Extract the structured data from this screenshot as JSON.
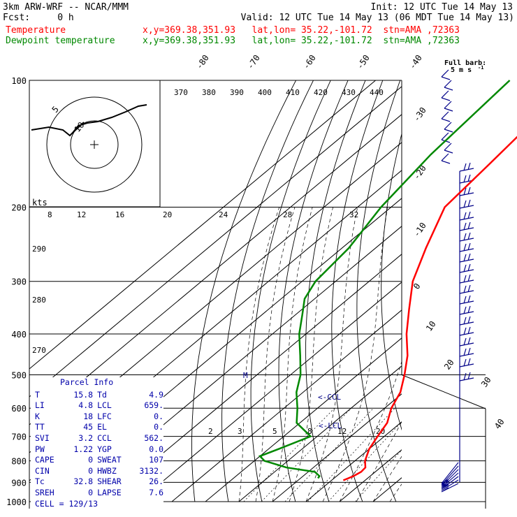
{
  "header": {
    "model": "3km ARW-WRF -- NCAR/MMM",
    "init": "Init: 12 UTC Tue 14 May 13",
    "fcst": "Fcst:     0 h",
    "valid": "Valid: 12 UTC Tue 14 May 13 (06 MDT Tue 14 May 13)",
    "temp_label": "Temperature",
    "dew_label": "Dewpoint temperature",
    "temp_coord": "x,y=369.38,351.93   lat,lon= 35.22,-101.72  stn=AMA ,72363",
    "dew_coord": "x,y=369.38,351.93   lat,lon= 35.22,-101.72  stn=AMA ,72363"
  },
  "colors": {
    "temperature": "#ff0000",
    "dewpoint": "#008800",
    "parcel_text": "#0000aa",
    "wind": "#000088"
  },
  "wind_legend": {
    "title": "Full barb:",
    "value": "5 m s",
    "exp": "-1"
  },
  "hodograph": {
    "rings": [
      "5",
      "10"
    ],
    "unit": "kts"
  },
  "chart_data": {
    "type": "line",
    "title": "",
    "ylabel": "",
    "xlabel": "",
    "y_scale": "log",
    "pressure_levels": [
      "100",
      "200",
      "300",
      "400",
      "500",
      "600",
      "700",
      "800",
      "900",
      "1000"
    ],
    "isotherm_labels": [
      "-80",
      "-70",
      "-60",
      "-50",
      "-40",
      "-30",
      "-20",
      "-10",
      "0",
      "10",
      "20",
      "30",
      "40"
    ],
    "theta_e_labels": [
      "370",
      "380",
      "390",
      "400",
      "410",
      "420",
      "430",
      "440"
    ],
    "hodo_speed_labels": [
      "8",
      "12",
      "16",
      "20",
      "24",
      "28",
      "32"
    ],
    "theta_labels": [
      "290",
      "280",
      "270"
    ],
    "mixing_ratio_labels": [
      "2",
      "3",
      "5",
      "8",
      "12",
      "20"
    ],
    "markers": {
      "ccl": "<-CCL",
      "lcl": "<-LCL",
      "m": "M"
    },
    "series": [
      {
        "name": "Temperature",
        "p": [
          100,
          130,
          160,
          200,
          250,
          300,
          350,
          400,
          450,
          500,
          550,
          600,
          650,
          700,
          750,
          800,
          830,
          850,
          870,
          890
        ],
        "t": [
          -61,
          -58,
          -56,
          -54,
          -45,
          -37,
          -28,
          -20,
          -12,
          -6,
          -1,
          2,
          6,
          8,
          10,
          13,
          15.5,
          15.8,
          15.0,
          13.5
        ]
      },
      {
        "name": "Dewpoint temperature",
        "p": [
          100,
          150,
          200,
          250,
          300,
          330,
          360,
          400,
          450,
          500,
          550,
          600,
          650,
          700,
          750,
          780,
          800,
          830,
          850,
          870,
          880
        ],
        "t": [
          -80,
          -77,
          -73,
          -68,
          -66,
          -63,
          -58,
          -52,
          -44,
          -37,
          -32,
          -26,
          -21,
          -12,
          -17,
          -20,
          -17,
          -8,
          2,
          4.9,
          5.2
        ]
      }
    ]
  },
  "parcel_info": {
    "title": "Parcel Info",
    "rows": [
      {
        "k1": "T",
        "v1": "15.8",
        "k2": "Td",
        "v2": "4.9"
      },
      {
        "k1": "LI",
        "v1": "4.8",
        "k2": "LCL",
        "v2": "659."
      },
      {
        "k1": "K",
        "v1": "18",
        "k2": "LFC",
        "v2": "0."
      },
      {
        "k1": "TT",
        "v1": "45",
        "k2": "EL",
        "v2": "0."
      },
      {
        "k1": "SVI",
        "v1": "3.2",
        "k2": "CCL",
        "v2": "562."
      },
      {
        "k1": "PW",
        "v1": "1.22",
        "k2": "YGP",
        "v2": "0.0"
      },
      {
        "k1": "CAPE",
        "v1": "0",
        "k2": "SWEAT",
        "v2": "107"
      },
      {
        "k1": "CIN",
        "v1": "0",
        "k2": "HWBZ",
        "v2": "3132."
      },
      {
        "k1": "Tc",
        "v1": "32.8",
        "k2": "SHEAR",
        "v2": "26."
      },
      {
        "k1": "SREH",
        "v1": "0",
        "k2": "LAPSE",
        "v2": "7.6"
      }
    ],
    "cell": "CELL = 129/13"
  }
}
